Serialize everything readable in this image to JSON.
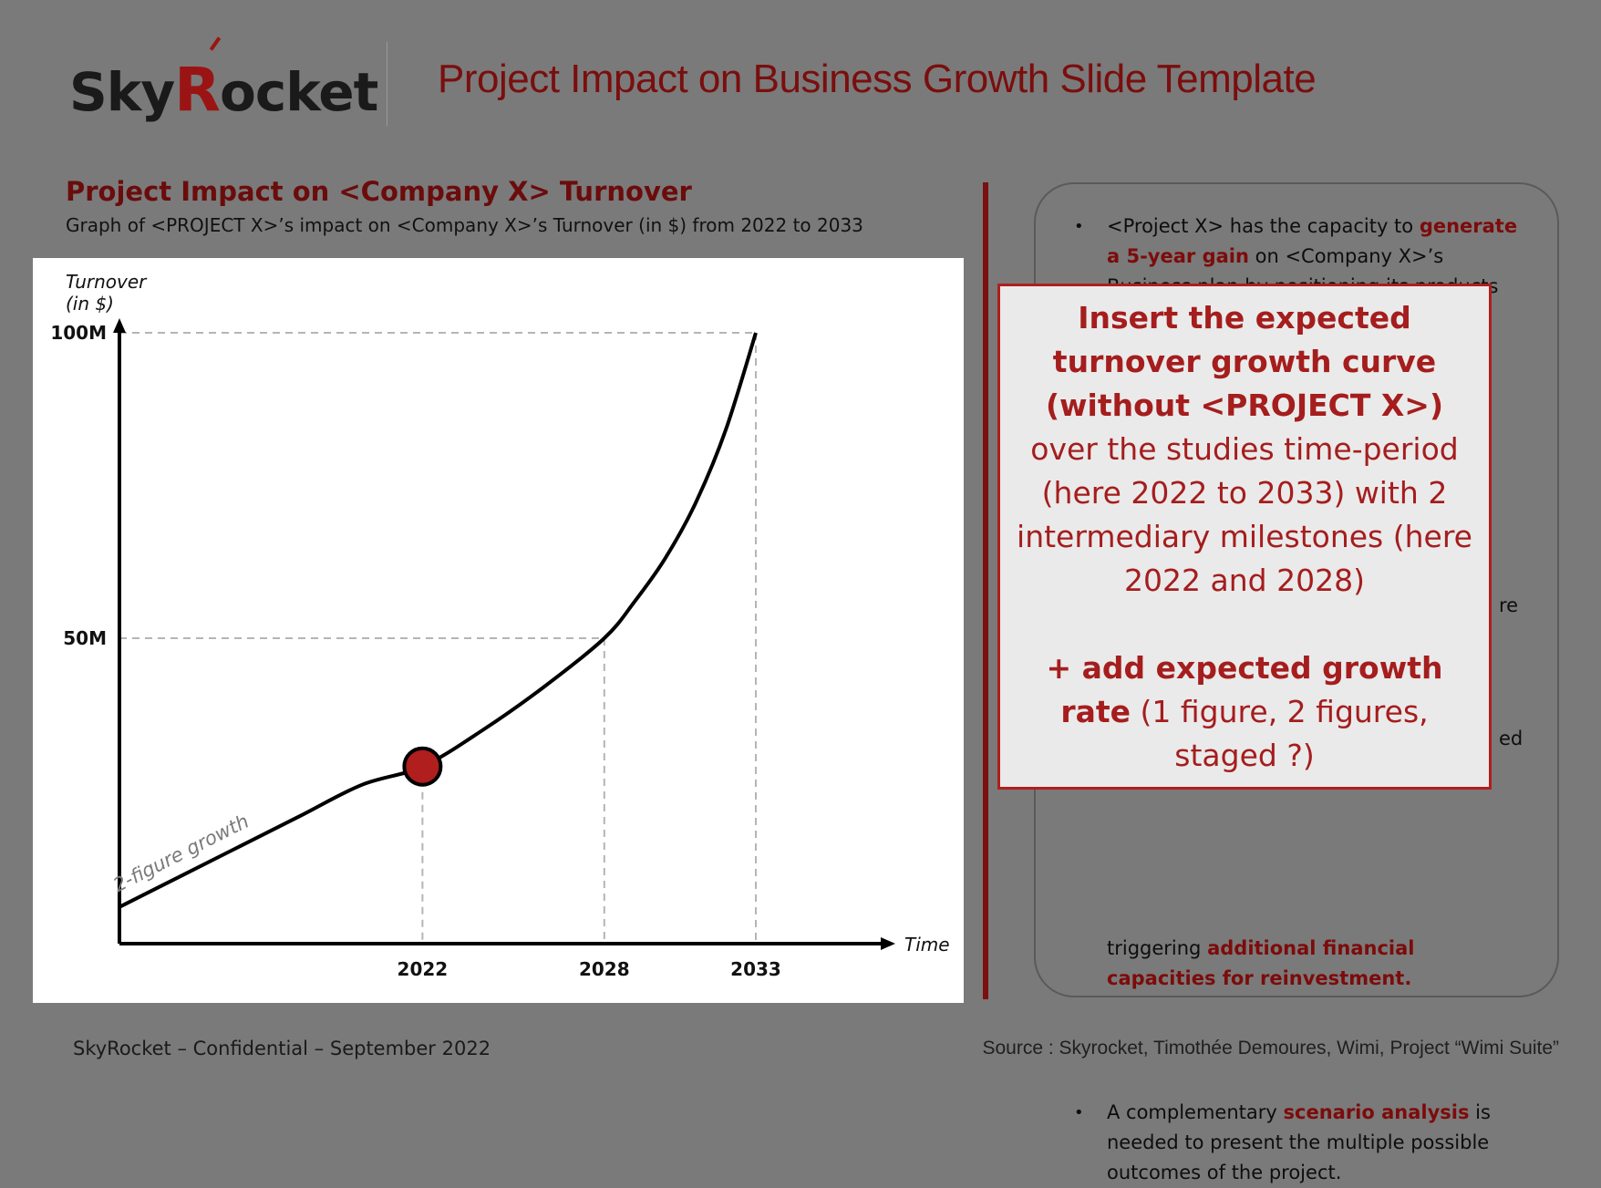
{
  "header": {
    "logo_text": "SkyRocket",
    "title": "Project Impact on Business Growth Slide Template"
  },
  "section": {
    "title": "Project Impact on <Company X> Turnover",
    "subtitle": "Graph of <PROJECT X>’s impact on <Company X>’s Turnover (in $) from 2022 to 2033"
  },
  "chart_data": {
    "type": "line",
    "title": "",
    "ylabel": "Turnover (in $)",
    "xlabel": "Time",
    "y_ticks": [
      "100M",
      "50M"
    ],
    "x_ticks": [
      "2022",
      "2028",
      "2033"
    ],
    "ylim": [
      0,
      100
    ],
    "x_range": [
      2012,
      2033
    ],
    "series": [
      {
        "label": "2-figure growth",
        "x": [
          2012,
          2014,
          2016,
          2018,
          2020,
          2022,
          2024,
          2026,
          2028,
          2029,
          2030,
          2031,
          2032,
          2033
        ],
        "y": [
          6,
          11,
          16,
          21,
          26,
          29,
          35,
          42,
          50,
          56,
          63,
          72,
          84,
          100
        ]
      }
    ],
    "highlight_point": {
      "x": 2022,
      "y": 29
    },
    "guide_levels": [
      100,
      50
    ],
    "guide_years": [
      2022,
      2028,
      2033
    ],
    "colors": {
      "curve": "#000000",
      "marker": "#b01e1e",
      "guide": "#b5b5b5"
    }
  },
  "bullets": {
    "b1_pre": "<Project X> has the capacity to ",
    "b1_hl": "generate a 5-year gain",
    "b1_post": " on <Company X>’s Business plan by positioning its products and",
    "frag_re": "re",
    "frag_ed": "ed",
    "b3_pre": "triggering ",
    "b3_hl": "additional financial capacities for reinvestment.",
    "b4_pre": "A complementary ",
    "b4_hl": "scenario analysis",
    "b4_post": " is needed to present the multiple possible outcomes of the project."
  },
  "callout": {
    "part1_bold": "Insert the expected turnover growth curve (without <PROJECT X>)",
    "part1_rest": " over the studies time-period (here 2022 to 2033) with 2 intermediary milestones (here 2022 and 2028)",
    "part2_bold": "+ add expected growth rate",
    "part2_rest": " (1 figure, 2 figures, staged ?)"
  },
  "footer": {
    "left": "SkyRocket – Confidential – September 2022",
    "right": "Source : Skyrocket, Timothée Demoures, Wimi, Project “Wimi Suite”"
  }
}
